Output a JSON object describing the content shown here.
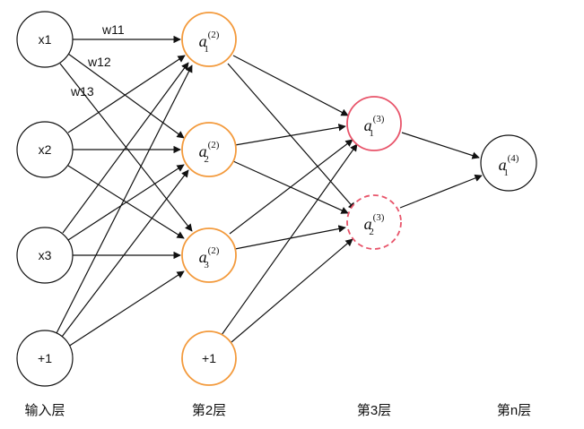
{
  "colors": {
    "input_stroke": "#111111",
    "hidden_stroke": "#f39a3c",
    "layer3_stroke": "#e8546a",
    "output_stroke": "#111111",
    "edge": "#111111",
    "text": "#111111"
  },
  "nodes": {
    "x1": "x1",
    "x2": "x2",
    "x3": "x3",
    "bias_input": "+1",
    "a21": {
      "base": "a",
      "sup": "(2)",
      "sub": "1"
    },
    "a22": {
      "base": "a",
      "sup": "(2)",
      "sub": "2"
    },
    "a23": {
      "base": "a",
      "sup": "(2)",
      "sub": "3"
    },
    "bias_hidden": "+1",
    "a31": {
      "base": "a",
      "sup": "(3)",
      "sub": "1"
    },
    "a32": {
      "base": "a",
      "sup": "(3)",
      "sub": "2"
    },
    "a41": {
      "base": "a",
      "sup": "(4)",
      "sub": "1"
    }
  },
  "weights": {
    "w11": "w11",
    "w12": "w12",
    "w13": "w13"
  },
  "layers": {
    "input": "输入层",
    "second": "第2层",
    "third": "第3层",
    "nth": "第n层"
  }
}
